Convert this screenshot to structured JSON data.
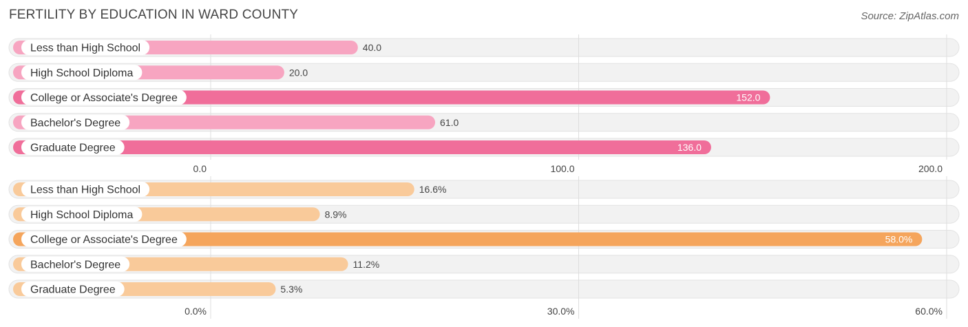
{
  "header": {
    "title": "FERTILITY BY EDUCATION IN WARD COUNTY",
    "source": "Source: ZipAtlas.com"
  },
  "chart_data": [
    {
      "type": "bar",
      "orientation": "horizontal",
      "categories": [
        "Less than High School",
        "High School Diploma",
        "College or Associate's Degree",
        "Bachelor's Degree",
        "Graduate Degree"
      ],
      "values": [
        40.0,
        20.0,
        152.0,
        61.0,
        136.0
      ],
      "value_labels": [
        "40.0",
        "20.0",
        "152.0",
        "61.0",
        "136.0"
      ],
      "xlim": [
        0,
        200
      ],
      "ticks": [
        0,
        100,
        200
      ],
      "tick_labels": [
        "0.0",
        "100.0",
        "200.0"
      ],
      "colors": {
        "light": "#F7A5C1",
        "dark": "#F06E9A"
      },
      "highlighted": [
        2,
        4
      ],
      "grid": true
    },
    {
      "type": "bar",
      "orientation": "horizontal",
      "categories": [
        "Less than High School",
        "High School Diploma",
        "College or Associate's Degree",
        "Bachelor's Degree",
        "Graduate Degree"
      ],
      "values": [
        16.6,
        8.9,
        58.0,
        11.2,
        5.3
      ],
      "value_labels": [
        "16.6%",
        "8.9%",
        "58.0%",
        "11.2%",
        "5.3%"
      ],
      "xlim": [
        0,
        60
      ],
      "ticks": [
        0,
        30,
        60
      ],
      "tick_labels": [
        "0.0%",
        "30.0%",
        "60.0%"
      ],
      "colors": {
        "light": "#F9CA9A",
        "dark": "#F5A55C"
      },
      "highlighted": [
        2
      ],
      "grid": true
    }
  ]
}
